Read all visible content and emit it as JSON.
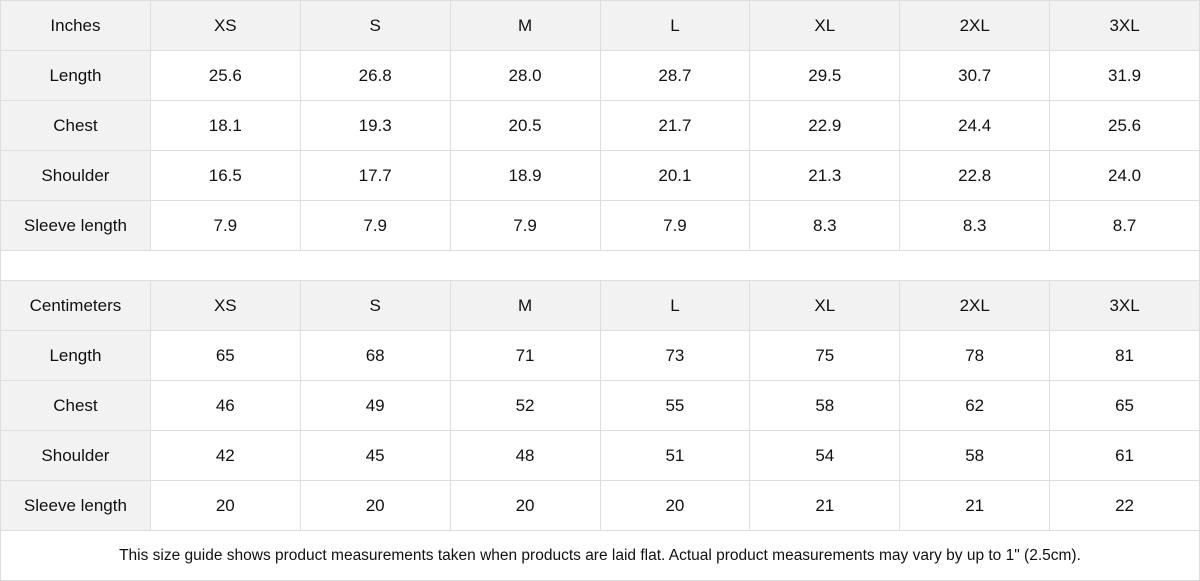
{
  "tables": [
    {
      "unit": "Inches",
      "sizes": [
        "XS",
        "S",
        "M",
        "L",
        "XL",
        "2XL",
        "3XL"
      ],
      "rows": [
        {
          "label": "Length",
          "values": [
            "25.6",
            "26.8",
            "28.0",
            "28.7",
            "29.5",
            "30.7",
            "31.9"
          ]
        },
        {
          "label": "Chest",
          "values": [
            "18.1",
            "19.3",
            "20.5",
            "21.7",
            "22.9",
            "24.4",
            "25.6"
          ]
        },
        {
          "label": "Shoulder",
          "values": [
            "16.5",
            "17.7",
            "18.9",
            "20.1",
            "21.3",
            "22.8",
            "24.0"
          ]
        },
        {
          "label": "Sleeve length",
          "values": [
            "7.9",
            "7.9",
            "7.9",
            "7.9",
            "8.3",
            "8.3",
            "8.7"
          ]
        }
      ]
    },
    {
      "unit": "Centimeters",
      "sizes": [
        "XS",
        "S",
        "M",
        "L",
        "XL",
        "2XL",
        "3XL"
      ],
      "rows": [
        {
          "label": "Length",
          "values": [
            "65",
            "68",
            "71",
            "73",
            "75",
            "78",
            "81"
          ]
        },
        {
          "label": "Chest",
          "values": [
            "46",
            "49",
            "52",
            "55",
            "58",
            "62",
            "65"
          ]
        },
        {
          "label": "Shoulder",
          "values": [
            "42",
            "45",
            "48",
            "51",
            "54",
            "58",
            "61"
          ]
        },
        {
          "label": "Sleeve length",
          "values": [
            "20",
            "20",
            "20",
            "20",
            "21",
            "21",
            "22"
          ]
        }
      ]
    }
  ],
  "note": "This size guide shows product measurements taken when products are laid flat.  Actual product measurements may vary by up to 1\" (2.5cm).",
  "colors": {
    "header_bg": "#f2f2f2",
    "border": "#dedede"
  }
}
